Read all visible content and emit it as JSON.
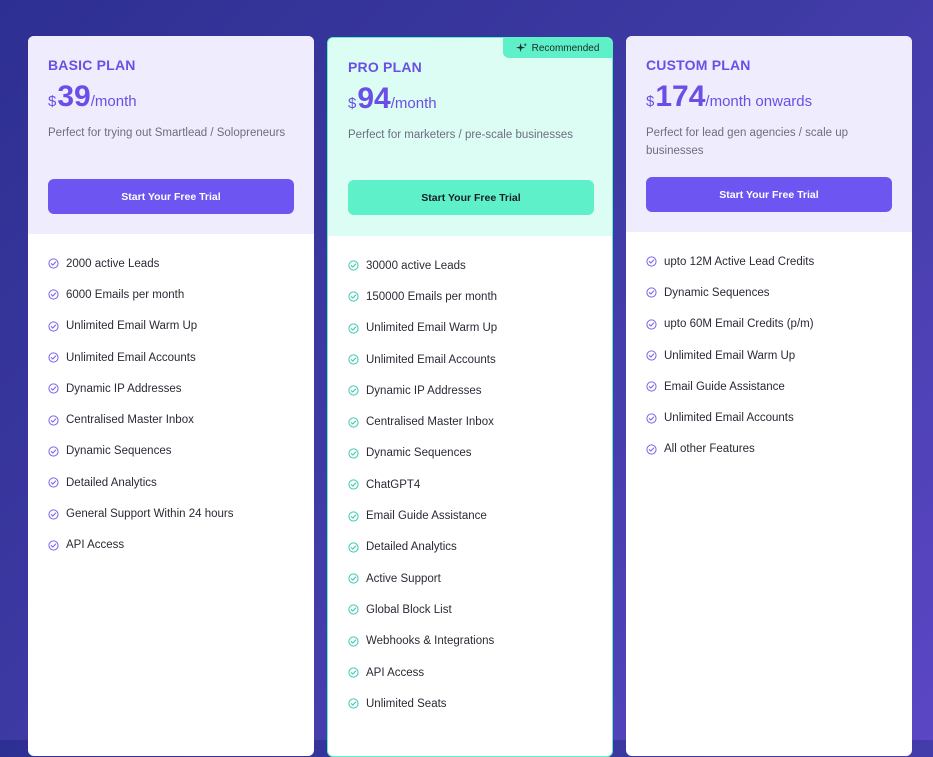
{
  "plans": [
    {
      "name": "BASIC PLAN",
      "currency": "$",
      "amount": "39",
      "period": "/month",
      "description": "Perfect for trying out Smartlead / Solopreneurs",
      "cta": "Start Your Free Trial",
      "features": [
        "2000 active Leads",
        "6000 Emails per month",
        "Unlimited Email Warm Up",
        "Unlimited Email Accounts",
        "Dynamic IP Addresses",
        "Centralised Master Inbox",
        "Dynamic Sequences",
        "Detailed Analytics",
        "General Support Within 24 hours",
        "API Access"
      ]
    },
    {
      "name": "PRO PLAN",
      "badge": "Recommended",
      "currency": "$",
      "amount": "94",
      "period": "/month",
      "description": "Perfect for marketers / pre-scale businesses",
      "cta": "Start Your Free Trial",
      "features": [
        "30000 active Leads",
        "150000 Emails per month",
        "Unlimited Email Warm Up",
        "Unlimited Email Accounts",
        "Dynamic IP Addresses",
        "Centralised Master Inbox",
        "Dynamic Sequences",
        "ChatGPT4",
        "Email Guide Assistance",
        "Detailed Analytics",
        "Active Support",
        "Global Block List",
        "Webhooks & Integrations",
        "API Access",
        "Unlimited Seats"
      ]
    },
    {
      "name": "CUSTOM PLAN",
      "currency": "$",
      "amount": "174",
      "period": "/month onwards",
      "description": "Perfect for lead gen agencies / scale up businesses",
      "cta": "Start Your Free Trial",
      "features": [
        "upto 12M Active Lead Credits",
        "Dynamic Sequences",
        "upto 60M Email Credits (p/m)",
        "Unlimited Email Warm Up",
        "Email Guide Assistance",
        "Unlimited Email Accounts",
        "All other Features"
      ]
    }
  ],
  "icons": {
    "feature": "check-circle-icon",
    "badge": "sparkle-icon"
  },
  "colors": {
    "accent": "#6c55f0",
    "pro_accent": "#5ef0c9",
    "background": "#3d3aa3"
  }
}
